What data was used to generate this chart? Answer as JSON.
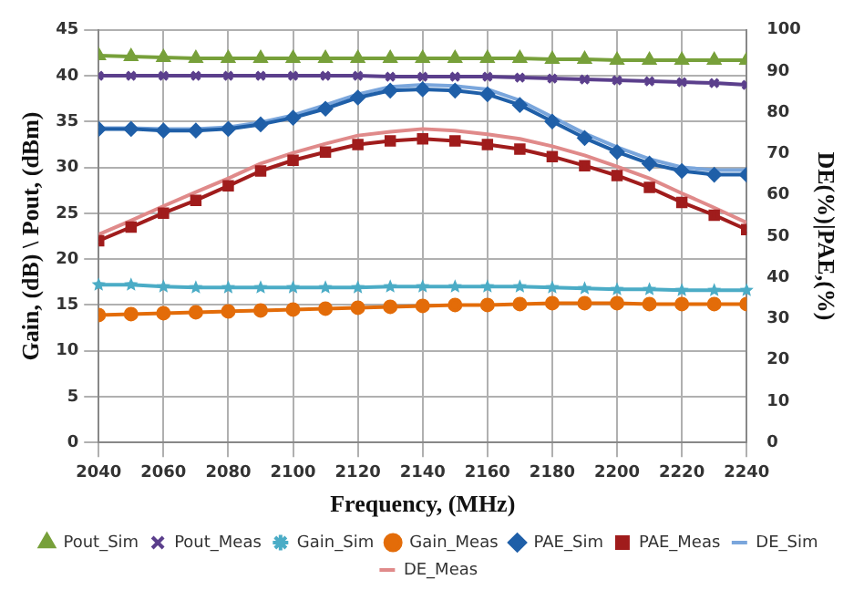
{
  "chart_data": {
    "type": "line",
    "xlabel": "Frequency, (MHz)",
    "ylabel": "Gain, (dB) \\ Pout, (dBm)",
    "y2label": "DE(%)|PAE,(%)",
    "x": [
      2040,
      2050,
      2060,
      2070,
      2080,
      2090,
      2100,
      2110,
      2120,
      2130,
      2140,
      2150,
      2160,
      2170,
      2180,
      2190,
      2200,
      2210,
      2220,
      2230,
      2240
    ],
    "xlim": [
      2040,
      2240
    ],
    "xticks": [
      2040,
      2060,
      2080,
      2100,
      2120,
      2140,
      2160,
      2180,
      2200,
      2220,
      2240
    ],
    "ylim": [
      0,
      45
    ],
    "yticks": [
      0,
      5,
      10,
      15,
      20,
      25,
      30,
      35,
      40,
      45
    ],
    "y2lim": [
      0,
      100
    ],
    "y2ticks": [
      0,
      10,
      20,
      30,
      40,
      50,
      60,
      70,
      80,
      90,
      100
    ],
    "grid": true,
    "legend": "bottom",
    "series": [
      {
        "name": "Pout_Sim",
        "color": "#77a03a",
        "marker": "triangle",
        "values": [
          42.2,
          42.1,
          42.0,
          41.9,
          41.9,
          41.9,
          41.9,
          41.9,
          41.9,
          41.9,
          41.9,
          41.9,
          41.9,
          41.9,
          41.8,
          41.8,
          41.7,
          41.7,
          41.7,
          41.7,
          41.7
        ]
      },
      {
        "name": "Pout_Meas",
        "color": "#5b3f8c",
        "marker": "cross",
        "values": [
          40.0,
          40.0,
          40.0,
          40.0,
          40.0,
          40.0,
          40.0,
          40.0,
          40.0,
          39.9,
          39.9,
          39.9,
          39.9,
          39.8,
          39.7,
          39.6,
          39.5,
          39.4,
          39.3,
          39.2,
          39.0
        ]
      },
      {
        "name": "Gain_Sim",
        "color": "#4bacc6",
        "marker": "star",
        "values": [
          17.2,
          17.2,
          17.0,
          16.9,
          16.9,
          16.9,
          16.9,
          16.9,
          16.9,
          17.0,
          17.0,
          17.0,
          17.0,
          17.0,
          16.9,
          16.8,
          16.7,
          16.7,
          16.6,
          16.6,
          16.6
        ]
      },
      {
        "name": "Gain_Meas",
        "color": "#e36c09",
        "marker": "circle",
        "values": [
          13.9,
          14.0,
          14.1,
          14.2,
          14.3,
          14.4,
          14.5,
          14.6,
          14.7,
          14.8,
          14.9,
          15.0,
          15.0,
          15.1,
          15.2,
          15.2,
          15.2,
          15.1,
          15.1,
          15.1,
          15.1
        ]
      },
      {
        "name": "PAE_Sim",
        "color": "#1f5fa8",
        "marker": "diamond",
        "axis": "y2",
        "values": [
          76,
          76,
          75.6,
          75.6,
          76,
          77.1,
          78.7,
          80.9,
          83.6,
          85.3,
          85.6,
          85.3,
          84.4,
          81.8,
          77.8,
          73.8,
          70.4,
          67.6,
          65.8,
          64.9,
          64.9
        ]
      },
      {
        "name": "PAE_Meas",
        "color": "#a01c1c",
        "marker": "square",
        "axis": "y2",
        "values": [
          48.9,
          52.2,
          55.6,
          58.7,
          62.2,
          65.8,
          68.4,
          70.4,
          72.2,
          73.1,
          73.6,
          73.1,
          72.2,
          71.1,
          69.3,
          67.1,
          64.7,
          61.8,
          58.2,
          55.1,
          51.6
        ]
      },
      {
        "name": "DE_Sim",
        "color": "#7aa6dc",
        "marker": "none",
        "axis": "y2",
        "values": [
          76.2,
          76.2,
          76,
          76,
          76.4,
          77.6,
          79.3,
          81.8,
          84.4,
          86.2,
          86.7,
          86.4,
          85.6,
          82.9,
          78.9,
          74.9,
          71.6,
          68.7,
          66.7,
          66,
          66
        ]
      },
      {
        "name": "DE_Meas",
        "color": "#e08a8a",
        "marker": "none",
        "axis": "y2",
        "values": [
          50.4,
          53.8,
          57.3,
          60.7,
          64,
          67.6,
          70.2,
          72.4,
          74.4,
          75.3,
          76,
          75.6,
          74.7,
          73.6,
          71.8,
          69.6,
          66.9,
          64,
          60.4,
          56.9,
          53.3
        ]
      }
    ]
  }
}
